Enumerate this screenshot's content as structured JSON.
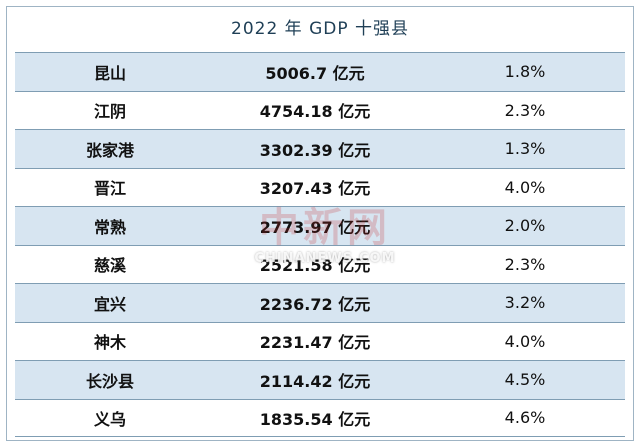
{
  "title": "2022 年 GDP 十强县",
  "watermark": {
    "chinese": "中新网",
    "english": "CHINANEWS.COM"
  },
  "rows": [
    {
      "county": "昆山",
      "gdp": "5006.7 亿元",
      "growth": "1.8%"
    },
    {
      "county": "江阴",
      "gdp": "4754.18 亿元",
      "growth": "2.3%"
    },
    {
      "county": "张家港",
      "gdp": "3302.39 亿元",
      "growth": "1.3%"
    },
    {
      "county": "晋江",
      "gdp": "3207.43 亿元",
      "growth": "4.0%"
    },
    {
      "county": "常熟",
      "gdp": "2773.97 亿元",
      "growth": "2.0%"
    },
    {
      "county": "慈溪",
      "gdp": "2521.58 亿元",
      "growth": "2.3%"
    },
    {
      "county": "宜兴",
      "gdp": "2236.72 亿元",
      "growth": "3.2%"
    },
    {
      "county": "神木",
      "gdp": "2231.47 亿元",
      "growth": "4.0%"
    },
    {
      "county": "长沙县",
      "gdp": "2114.42 亿元",
      "growth": "4.5%"
    },
    {
      "county": "义乌",
      "gdp": "1835.54 亿元",
      "growth": "4.6%"
    }
  ],
  "colors": {
    "shaded_row": "#d7e5f1",
    "border": "#7f9db3",
    "title_text": "#1f3f56"
  }
}
